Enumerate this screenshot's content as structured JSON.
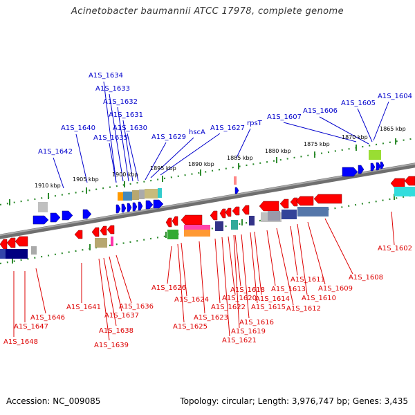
{
  "title": "Acinetobacter baumannii ATCC 17978, complete genome",
  "footer": {
    "accession": "Accession: NC_009085",
    "summary": "Topology: circular; Length: 3,976,747 bp; Genes: 3,435"
  },
  "colors": {
    "forward_label": "#0000cc",
    "reverse_label": "#dd0000",
    "forward_gene": "#0000ff",
    "reverse_gene": "#ff0000",
    "track_dots": "#2e8b2e",
    "backbone": "#888888"
  },
  "kbp_ticks": [
    "1910 kbp",
    "1905 kbp",
    "1900 kbp",
    "1895 kbp",
    "1890 kbp",
    "1885 kbp",
    "1880 kbp",
    "1875 kbp",
    "1870 kbp",
    "1865 kbp"
  ],
  "forward_labels": [
    "A1S_1642",
    "A1S_1640",
    "A1S_1635",
    "A1S_1634",
    "A1S_1633",
    "A1S_1632",
    "A1S_1631",
    "A1S_1630",
    "A1S_1629",
    "hscA",
    "A1S_1627",
    "rpsT",
    "A1S_1607",
    "A1S_1606",
    "A1S_1605",
    "A1S_1604"
  ],
  "reverse_labels": [
    "A1S_1648",
    "A1S_1647",
    "A1S_1646",
    "A1S_1641",
    "A1S_1639",
    "A1S_1638",
    "A1S_1637",
    "A1S_1636",
    "A1S_1626",
    "A1S_1625",
    "A1S_1624",
    "A1S_1623",
    "A1S_1622",
    "A1S_1621",
    "A1S_1620",
    "A1S_1619",
    "A1S_1618",
    "A1S_1616",
    "A1S_1615",
    "A1S_1614",
    "A1S_1613",
    "A1S_1612",
    "A1S_1611",
    "A1S_1610",
    "A1S_1609",
    "A1S_1608",
    "A1S_1602"
  ]
}
